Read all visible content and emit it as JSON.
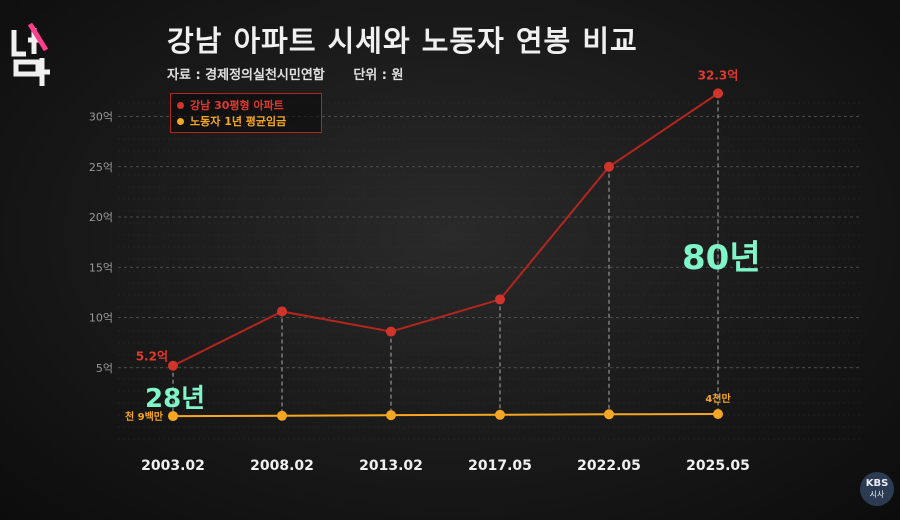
{
  "title": "강남 아파트 시세와 노동자 연봉 비교",
  "source": {
    "label": "자료 : 경제정의실천시민연합",
    "unit": "단위 : 원"
  },
  "logo_text": "더보다",
  "broadcaster": {
    "line1": "KBS",
    "line2": "시사"
  },
  "annotations": {
    "years_2025": "80년",
    "years_2003": "28년"
  },
  "colors": {
    "apartment": "#b3261e",
    "wage": "#f5a623",
    "highlight": "#7ff5c8",
    "grid": "#5a5a5a"
  },
  "chart_data": {
    "type": "line",
    "categories": [
      "2003.02",
      "2008.02",
      "2013.02",
      "2017.05",
      "2022.05",
      "2025.05"
    ],
    "y_ticks": [
      "5억",
      "10억",
      "15억",
      "20억",
      "25억",
      "30억"
    ],
    "ylim": [
      0,
      33
    ],
    "grid": true,
    "legend_position": "top-left",
    "series": [
      {
        "name": "강남 30평형 아파트",
        "color": "#b3261e",
        "values": [
          5.2,
          10.6,
          8.6,
          11.8,
          25.0,
          32.3
        ]
      },
      {
        "name": "노동자 1년 평균임금",
        "color": "#f5a623",
        "values": [
          0.19,
          0.22,
          0.28,
          0.32,
          0.37,
          0.4
        ]
      }
    ],
    "data_labels": [
      {
        "series": 0,
        "index": 0,
        "text": "5.2억"
      },
      {
        "series": 0,
        "index": 5,
        "text": "32.3억"
      },
      {
        "series": 1,
        "index": 0,
        "text": "천 9백만"
      },
      {
        "series": 1,
        "index": 5,
        "text": "4천만"
      }
    ]
  }
}
